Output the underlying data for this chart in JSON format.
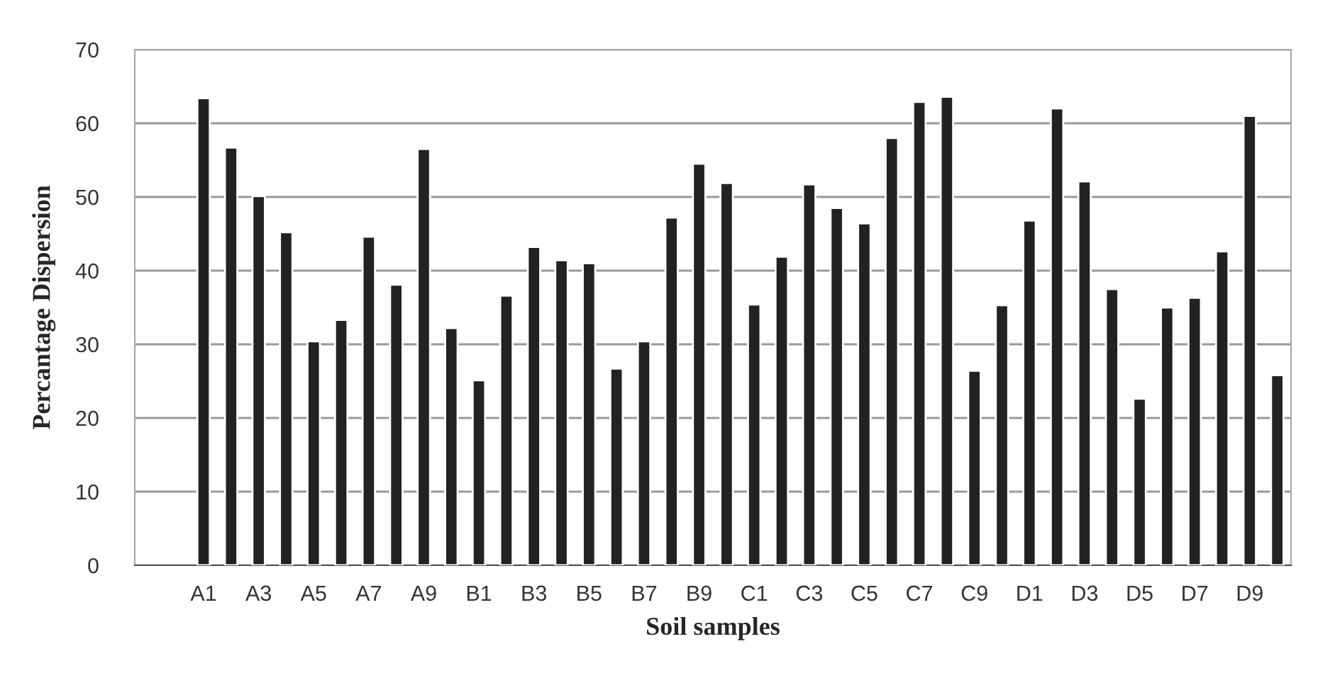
{
  "chart_data": {
    "type": "bar",
    "xlabel": "Soil samples",
    "ylabel": "Percantage Dispersion",
    "categories": [
      null,
      null,
      "A1",
      null,
      "A3",
      null,
      "A5",
      null,
      "A7",
      null,
      "A9",
      null,
      "B1",
      null,
      "B3",
      null,
      "B5",
      null,
      "B7",
      null,
      "B9",
      null,
      "C1",
      null,
      "C3",
      null,
      "C5",
      null,
      "C7",
      null,
      "C9",
      null,
      "D1",
      null,
      "D3",
      null,
      "D5",
      null,
      "D7",
      null,
      "D9",
      null
    ],
    "values": [
      null,
      null,
      63.4,
      56.7,
      50.1,
      45.2,
      30.4,
      33.3,
      44.6,
      38.1,
      56.5,
      32.2,
      25.1,
      36.6,
      43.2,
      41.4,
      41.0,
      26.7,
      30.4,
      47.2,
      54.5,
      51.9,
      35.4,
      41.9,
      51.7,
      48.5,
      46.4,
      58.0,
      62.9,
      63.6,
      26.4,
      35.3,
      46.8,
      62.0,
      52.1,
      37.5,
      22.6,
      35.0,
      36.3,
      42.6,
      61.0,
      25.8
    ],
    "color": "#222222",
    "ylim": [
      0,
      70
    ],
    "yticks": [
      0,
      10,
      20,
      30,
      40,
      50,
      60,
      70
    ],
    "grid": "y",
    "legend": false
  }
}
